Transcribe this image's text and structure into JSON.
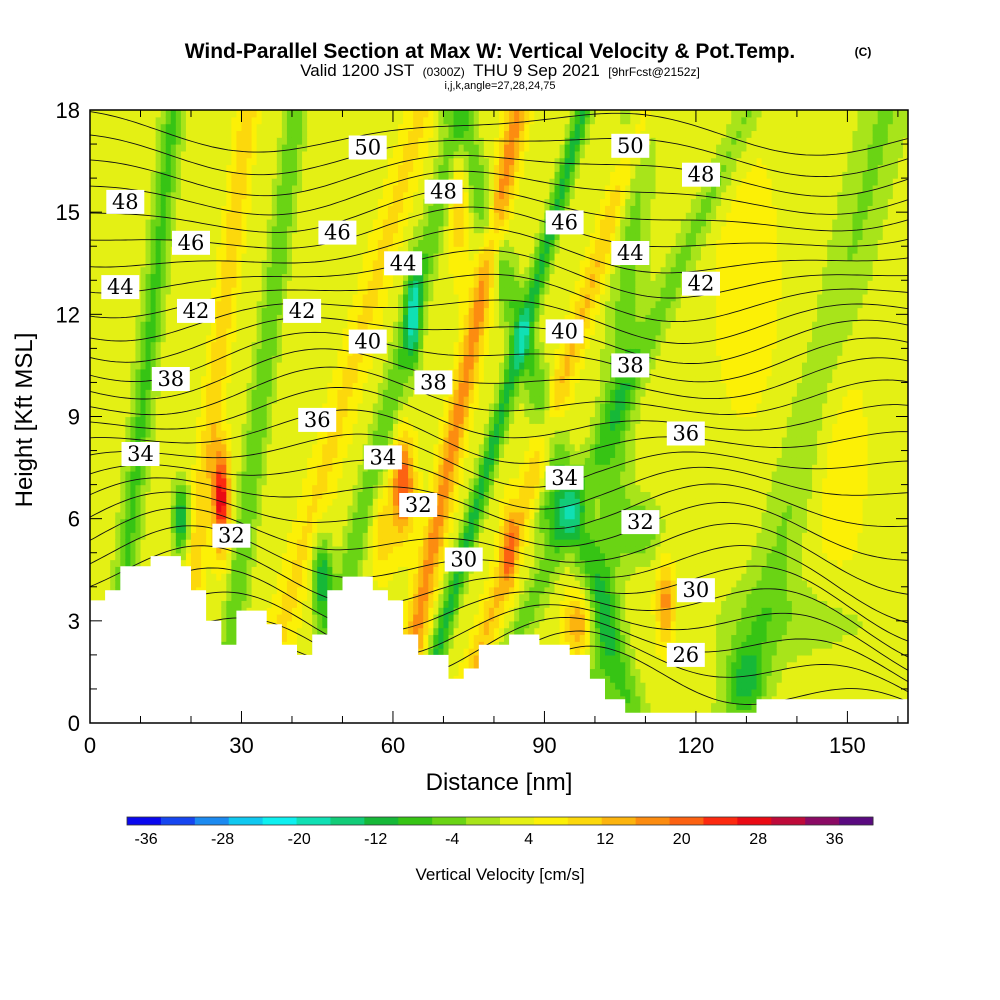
{
  "title": {
    "main": "Wind-Parallel Section at Max W: Vertical Velocity & Pot.Temp.",
    "copyright": "(C)",
    "valid_prefix": "Valid 1200 JST",
    "valid_z": "(0300Z)",
    "valid_date": "THU 9 Sep 2021",
    "forecast": "[9hrFcst@2152z]",
    "indices": "i,j,k,angle=27,28,24,75"
  },
  "chart_data": {
    "type": "heatmap",
    "xlabel": "Distance [nm]",
    "ylabel": "Height [Kft MSL]",
    "xlim": [
      0,
      162
    ],
    "ylim": [
      0,
      18
    ],
    "xticks": [
      "0",
      "30",
      "60",
      "90",
      "120",
      "150"
    ],
    "yticks": [
      "0",
      "3",
      "6",
      "9",
      "12",
      "15",
      "18"
    ],
    "colorbar": {
      "label": "Vertical Velocity [cm/s]",
      "range": [
        -38,
        40
      ],
      "tick_labels": [
        "-36",
        "-28",
        "-20",
        "-12",
        "-4",
        "4",
        "12",
        "20",
        "28",
        "36"
      ],
      "colors": [
        "#0a08ee",
        "#1646f0",
        "#1c8af0",
        "#10c8f0",
        "#0ef0f0",
        "#10e0b4",
        "#12cc78",
        "#16b838",
        "#36c414",
        "#6ad414",
        "#a8e41a",
        "#e4f014",
        "#fcf006",
        "#fcd80c",
        "#fcb40e",
        "#fc8c10",
        "#fc6212",
        "#fc2a10",
        "#ea0a14",
        "#be0a3a",
        "#8a0a64",
        "#5a0a80"
      ]
    },
    "theta_labels": [
      {
        "text": "50",
        "x": 55,
        "y": 16.9
      },
      {
        "text": "50",
        "x": 107,
        "y": 16.95
      },
      {
        "text": "48",
        "x": 7,
        "y": 15.3
      },
      {
        "text": "48",
        "x": 70,
        "y": 15.6
      },
      {
        "text": "48",
        "x": 121,
        "y": 16.1
      },
      {
        "text": "46",
        "x": 20,
        "y": 14.1
      },
      {
        "text": "46",
        "x": 49,
        "y": 14.4
      },
      {
        "text": "46",
        "x": 94,
        "y": 14.7
      },
      {
        "text": "44",
        "x": 6,
        "y": 12.8
      },
      {
        "text": "44",
        "x": 62,
        "y": 13.5
      },
      {
        "text": "44",
        "x": 107,
        "y": 13.8
      },
      {
        "text": "42",
        "x": 21,
        "y": 12.1
      },
      {
        "text": "42",
        "x": 42,
        "y": 12.1
      },
      {
        "text": "42",
        "x": 121,
        "y": 12.9
      },
      {
        "text": "40",
        "x": 55,
        "y": 11.2
      },
      {
        "text": "40",
        "x": 94,
        "y": 11.5
      },
      {
        "text": "38",
        "x": 16,
        "y": 10.1
      },
      {
        "text": "38",
        "x": 68,
        "y": 10.0
      },
      {
        "text": "38",
        "x": 107,
        "y": 10.5
      },
      {
        "text": "36",
        "x": 45,
        "y": 8.9
      },
      {
        "text": "36",
        "x": 118,
        "y": 8.5
      },
      {
        "text": "34",
        "x": 10,
        "y": 7.9
      },
      {
        "text": "34",
        "x": 58,
        "y": 7.8
      },
      {
        "text": "34",
        "x": 94,
        "y": 7.2
      },
      {
        "text": "32",
        "x": 28,
        "y": 5.5
      },
      {
        "text": "32",
        "x": 65,
        "y": 6.4
      },
      {
        "text": "32",
        "x": 109,
        "y": 5.9
      },
      {
        "text": "30",
        "x": 74,
        "y": 4.8
      },
      {
        "text": "30",
        "x": 120,
        "y": 3.9
      },
      {
        "text": "26",
        "x": 118,
        "y": 2.0
      }
    ]
  }
}
